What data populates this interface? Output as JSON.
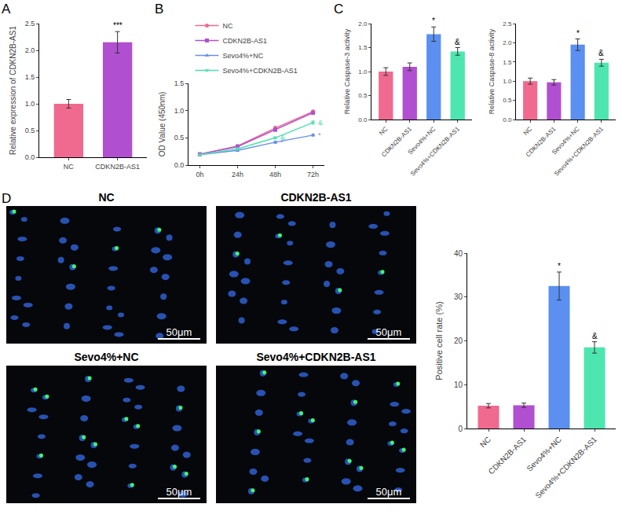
{
  "chart_data": [
    {
      "panel": "A",
      "type": "bar",
      "y_label": "Relative expression of CDKN2B-AS1",
      "categories": [
        "NC",
        "CDKN2B-AS1"
      ],
      "values": [
        1.0,
        2.15
      ],
      "errors": [
        0.08,
        0.2
      ],
      "colors": [
        "#f06a8f",
        "#b04fd0"
      ],
      "ylim": [
        0,
        2.5
      ],
      "yticks": [
        {
          "value": 0,
          "label": "0.0"
        },
        {
          "value": 0.5,
          "label": "0.5"
        },
        {
          "value": 1,
          "label": "1.0"
        },
        {
          "value": 1.5,
          "label": "1.5"
        },
        {
          "value": 2,
          "label": "2.0"
        },
        {
          "value": 2.5,
          "label": "2.5"
        }
      ],
      "grid": false,
      "annotations": [
        {
          "category": "CDKN2B-AS1",
          "text": "***"
        }
      ]
    },
    {
      "panel": "B",
      "type": "line",
      "y_label": "OD Value (450nm)",
      "categories": [
        "0h",
        "24h",
        "48h",
        "72h"
      ],
      "series": [
        {
          "name": "NC",
          "color": "#f06a8f",
          "marker": "circle",
          "values": [
            0.2,
            0.35,
            0.68,
            0.98
          ],
          "errors": [
            0.01,
            0.02,
            0.03,
            0.03
          ]
        },
        {
          "name": "CDKN2B-AS1",
          "color": "#b04fd0",
          "marker": "square",
          "values": [
            0.2,
            0.34,
            0.65,
            0.96
          ],
          "errors": [
            0.01,
            0.02,
            0.03,
            0.03
          ]
        },
        {
          "name": "Sevo4%+NC",
          "color": "#6a8ee8",
          "marker": "triangle-up",
          "values": [
            0.19,
            0.27,
            0.42,
            0.55
          ],
          "errors": [
            0.01,
            0.02,
            0.02,
            0.02
          ]
        },
        {
          "name": "Sevo4%+CDKN2B-AS1",
          "color": "#4de0b0",
          "marker": "triangle-down",
          "values": [
            0.19,
            0.3,
            0.5,
            0.78
          ],
          "errors": [
            0.01,
            0.02,
            0.02,
            0.03
          ]
        }
      ],
      "ylim": [
        0,
        1.5
      ],
      "yticks": [
        {
          "value": 0,
          "label": "0.0"
        },
        {
          "value": 0.5,
          "label": "0.5"
        },
        {
          "value": 1,
          "label": "1.0"
        },
        {
          "value": 1.5,
          "label": "1.5"
        }
      ],
      "grid": false,
      "legend": "top-left",
      "annotations": [
        {
          "series": "Sevo4%+NC",
          "category": "48h",
          "text": "*"
        },
        {
          "series": "Sevo4%+NC",
          "category": "72h",
          "text": "*"
        },
        {
          "series": "Sevo4%+CDKN2B-AS1",
          "category": "48h",
          "text": "&"
        },
        {
          "series": "Sevo4%+CDKN2B-AS1",
          "category": "72h",
          "text": "&"
        }
      ]
    },
    {
      "panel": "C",
      "type": "bar",
      "y_label": "Relative Caspase-3 activity",
      "categories": [
        "NC",
        "CDKN2B-AS1",
        "Sevo4%+NC",
        "Sevo4%+CDKN2B-AS1"
      ],
      "values": [
        1.0,
        1.1,
        1.78,
        1.42
      ],
      "errors": [
        0.08,
        0.08,
        0.15,
        0.08
      ],
      "colors": [
        "#f06a8f",
        "#b04fd0",
        "#5b8ff0",
        "#4ee6b0"
      ],
      "ylim": [
        0,
        2.0
      ],
      "yticks": [
        {
          "value": 0,
          "label": "0.0"
        },
        {
          "value": 0.5,
          "label": "0.5"
        },
        {
          "value": 1,
          "label": "1.0"
        },
        {
          "value": 1.5,
          "label": "1.5"
        },
        {
          "value": 2,
          "label": "2.0"
        }
      ],
      "grid": false,
      "annotations": [
        {
          "category": "Sevo4%+NC",
          "text": "*"
        },
        {
          "category": "Sevo4%+CDKN2B-AS1",
          "text": "&"
        }
      ]
    },
    {
      "type": "bar",
      "y_label": "Relative Caspase-8 activity",
      "categories": [
        "NC",
        "CDKN2B-AS1",
        "Sevo4%+NC",
        "Sevo4%+CDKN2B-AS1"
      ],
      "values": [
        1.0,
        0.97,
        1.95,
        1.48
      ],
      "errors": [
        0.08,
        0.07,
        0.15,
        0.09
      ],
      "colors": [
        "#f06a8f",
        "#b04fd0",
        "#5b8ff0",
        "#4ee6b0"
      ],
      "ylim": [
        0,
        2.5
      ],
      "yticks": [
        {
          "value": 0,
          "label": "0.0"
        },
        {
          "value": 0.5,
          "label": "0.5"
        },
        {
          "value": 1,
          "label": "1.0"
        },
        {
          "value": 1.5,
          "label": "1.5"
        },
        {
          "value": 2,
          "label": "2.0"
        },
        {
          "value": 2.5,
          "label": "2.5"
        }
      ],
      "grid": false,
      "annotations": [
        {
          "category": "Sevo4%+NC",
          "text": "*"
        },
        {
          "category": "Sevo4%+CDKN2B-AS1",
          "text": "&"
        }
      ]
    },
    {
      "type": "bar",
      "y_label": "Positive cell rate (%)",
      "categories": [
        "NC",
        "CDKN2B-AS1",
        "Sevo4%+NC",
        "Sevo4%+CDKN2B-AS1"
      ],
      "values": [
        5.2,
        5.3,
        32.5,
        18.5
      ],
      "errors": [
        0.5,
        0.5,
        3.2,
        1.3
      ],
      "colors": [
        "#f06a8f",
        "#b04fd0",
        "#5b8ff0",
        "#4ee6b0"
      ],
      "ylim": [
        0,
        40
      ],
      "yticks": [
        0,
        10,
        20,
        30,
        40
      ],
      "grid": false,
      "annotations": [
        {
          "category": "Sevo4%+NC",
          "text": "*"
        },
        {
          "category": "Sevo4%+CDKN2B-AS1",
          "text": "&"
        }
      ]
    }
  ],
  "images": {
    "panel": "D",
    "titles": [
      "NC",
      "CDKN2B-AS1",
      "Sevo4%+NC",
      "Sevo4%+CDKN2B-AS1"
    ],
    "scale_bar": "50μm"
  }
}
